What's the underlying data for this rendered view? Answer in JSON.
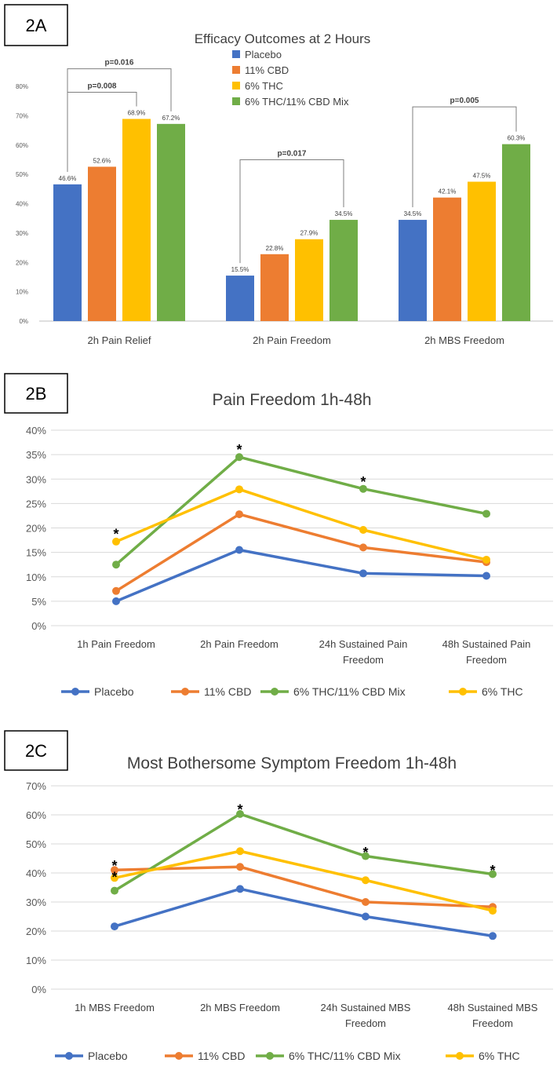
{
  "colors": {
    "placebo": "#4472c4",
    "cbd": "#ed7d31",
    "thc": "#ffc000",
    "mix": "#70ad47",
    "grid": "#d9d9d9",
    "bracket": "#7f7f7f"
  },
  "chart_data": [
    {
      "id": "2A",
      "type": "bar",
      "panel_label": "2A",
      "title": "Efficacy Outcomes at 2 Hours",
      "categories": [
        "2h Pain Relief",
        "2h Pain Freedom",
        "2h MBS Freedom"
      ],
      "series": [
        {
          "name": "Placebo",
          "color_key": "placebo",
          "values": [
            46.6,
            15.5,
            34.5
          ],
          "labels": [
            "46.6%",
            "15.5%",
            "34.5%"
          ]
        },
        {
          "name": "11% CBD",
          "color_key": "cbd",
          "values": [
            52.6,
            22.8,
            42.1
          ],
          "labels": [
            "52.6%",
            "22.8%",
            "42.1%"
          ]
        },
        {
          "name": "6% THC",
          "color_key": "thc",
          "values": [
            68.9,
            27.9,
            47.5
          ],
          "labels": [
            "68.9%",
            "27.9%",
            "47.5%"
          ]
        },
        {
          "name": "6% THC/11% CBD Mix",
          "color_key": "mix",
          "values": [
            67.2,
            34.5,
            60.3
          ],
          "labels": [
            "67.2%",
            "34.5%",
            "60.3%"
          ]
        }
      ],
      "ylim": [
        0,
        80
      ],
      "yticks": [
        0,
        10,
        20,
        30,
        40,
        50,
        60,
        70,
        80
      ],
      "ytick_labels": [
        "0%",
        "10%",
        "20%",
        "30%",
        "40%",
        "50%",
        "60%",
        "70%",
        "80%"
      ],
      "legend": "inside-top-center",
      "comparisons": [
        {
          "category": 0,
          "from_series": 0,
          "to_series": 3,
          "label": "p=0.016",
          "level": 86
        },
        {
          "category": 0,
          "from_series": 0,
          "to_series": 2,
          "label": "p=0.008",
          "level": 78
        },
        {
          "category": 1,
          "from_series": 0,
          "to_series": 3,
          "label": "p=0.017",
          "level": 55
        },
        {
          "category": 2,
          "from_series": 0,
          "to_series": 3,
          "label": "p=0.005",
          "level": 73
        }
      ]
    },
    {
      "id": "2B",
      "type": "line",
      "panel_label": "2B",
      "title": "Pain Freedom 1h-48h",
      "categories": [
        [
          "1h Pain Freedom"
        ],
        [
          "2h Pain Freedom"
        ],
        [
          "24h Sustained Pain",
          "Freedom"
        ],
        [
          "48h Sustained Pain",
          "Freedom"
        ]
      ],
      "series": [
        {
          "name": "Placebo",
          "color_key": "placebo",
          "values": [
            5.0,
            15.5,
            10.7,
            10.2
          ]
        },
        {
          "name": "11% CBD",
          "color_key": "cbd",
          "values": [
            7.1,
            22.8,
            16.0,
            13.0
          ]
        },
        {
          "name": "6% THC/11% CBD Mix",
          "color_key": "mix",
          "values": [
            12.5,
            34.5,
            28.0,
            22.9
          ]
        },
        {
          "name": "6% THC",
          "color_key": "thc",
          "values": [
            17.2,
            27.9,
            19.6,
            13.5
          ]
        }
      ],
      "ylim": [
        0,
        40
      ],
      "yticks": [
        0,
        5,
        10,
        15,
        20,
        25,
        30,
        35,
        40
      ],
      "ytick_labels": [
        "0%",
        "5%",
        "10%",
        "15%",
        "20%",
        "25%",
        "30%",
        "35%",
        "40%"
      ],
      "legend": "bottom",
      "annotations": [
        {
          "text": "*",
          "category": 0,
          "y": 19.0
        },
        {
          "text": "*",
          "category": 1,
          "y": 36.3
        },
        {
          "text": "*",
          "category": 2,
          "y": 29.7
        }
      ]
    },
    {
      "id": "2C",
      "type": "line",
      "panel_label": "2C",
      "title": "Most Bothersome Symptom Freedom 1h-48h",
      "categories": [
        [
          "1h MBS Freedom"
        ],
        [
          "2h MBS Freedom"
        ],
        [
          "24h Sustained MBS",
          "Freedom"
        ],
        [
          "48h Sustained MBS",
          "Freedom"
        ]
      ],
      "series": [
        {
          "name": "Placebo",
          "color_key": "placebo",
          "values": [
            21.6,
            34.5,
            25.0,
            18.3
          ]
        },
        {
          "name": "11% CBD",
          "color_key": "cbd",
          "values": [
            41.0,
            42.1,
            30.0,
            28.3
          ]
        },
        {
          "name": "6% THC/11% CBD Mix",
          "color_key": "mix",
          "values": [
            33.9,
            60.3,
            45.8,
            39.6
          ]
        },
        {
          "name": "6% THC",
          "color_key": "thc",
          "values": [
            38.3,
            47.5,
            37.5,
            27.0
          ]
        }
      ],
      "ylim": [
        0,
        70
      ],
      "yticks": [
        0,
        10,
        20,
        30,
        40,
        50,
        60,
        70
      ],
      "ytick_labels": [
        "0%",
        "10%",
        "20%",
        "30%",
        "40%",
        "50%",
        "60%",
        "70%"
      ],
      "legend": "bottom",
      "annotations": [
        {
          "text": "*",
          "category": 0,
          "y": 43.0
        },
        {
          "text": "*",
          "category": 0,
          "y": 39.0
        },
        {
          "text": "*",
          "category": 1,
          "y": 62.3
        },
        {
          "text": "*",
          "category": 2,
          "y": 47.6
        },
        {
          "text": "*",
          "category": 3,
          "y": 41.4
        }
      ]
    }
  ]
}
